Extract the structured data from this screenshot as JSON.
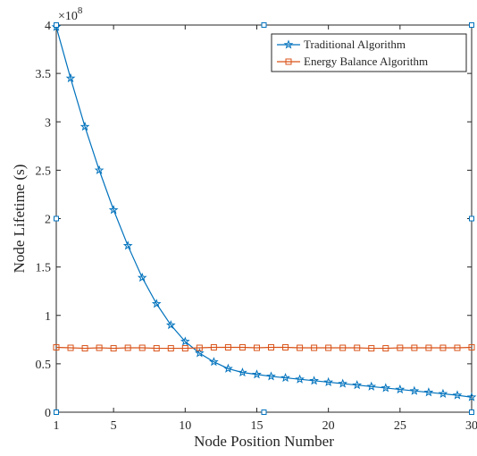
{
  "chart_data": {
    "type": "line",
    "xlabel": "Node Position Number",
    "ylabel": "Node  Lifetime (s)",
    "y_exponent_label": "×10",
    "y_exponent_power": "8",
    "xlim": [
      1,
      30
    ],
    "ylim": [
      0,
      4
    ],
    "x_ticks": [
      1,
      5,
      10,
      15,
      20,
      25,
      30
    ],
    "y_ticks": [
      0,
      0.5,
      1,
      1.5,
      2,
      2.5,
      3,
      3.5,
      4
    ],
    "x_tick_labels": [
      "1",
      "5",
      "10",
      "15",
      "20",
      "25",
      "30"
    ],
    "y_tick_labels": [
      "0",
      "0.5",
      "1",
      "1.5",
      "2",
      "2.5",
      "3",
      "3.5",
      "4"
    ],
    "grid": false,
    "legend_position": "top-right",
    "x": [
      1,
      2,
      3,
      4,
      5,
      6,
      7,
      8,
      9,
      10,
      11,
      12,
      13,
      14,
      15,
      16,
      17,
      18,
      19,
      20,
      21,
      22,
      23,
      24,
      25,
      26,
      27,
      28,
      29,
      30
    ],
    "series": [
      {
        "name": "Traditional Algorithm",
        "color": "#0072BD",
        "marker": "star",
        "values": [
          3.98,
          3.45,
          2.95,
          2.5,
          2.09,
          1.72,
          1.39,
          1.12,
          0.9,
          0.73,
          0.61,
          0.52,
          0.45,
          0.41,
          0.39,
          0.37,
          0.355,
          0.34,
          0.325,
          0.31,
          0.295,
          0.28,
          0.265,
          0.25,
          0.235,
          0.22,
          0.205,
          0.19,
          0.175,
          0.155
        ]
      },
      {
        "name": "Energy Balance Algorithm",
        "color": "#D95319",
        "marker": "square",
        "values": [
          0.67,
          0.665,
          0.66,
          0.665,
          0.66,
          0.665,
          0.665,
          0.66,
          0.66,
          0.66,
          0.665,
          0.67,
          0.67,
          0.67,
          0.665,
          0.67,
          0.67,
          0.665,
          0.665,
          0.665,
          0.665,
          0.665,
          0.66,
          0.66,
          0.665,
          0.665,
          0.665,
          0.665,
          0.665,
          0.67
        ]
      }
    ]
  }
}
